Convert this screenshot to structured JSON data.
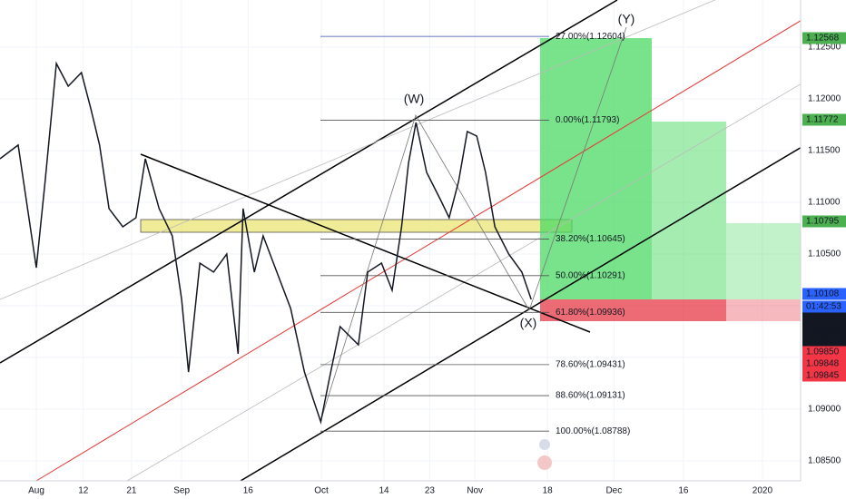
{
  "chart_data": {
    "type": "line",
    "color": "#131722",
    "x": [
      0,
      2.9,
      5.8,
      7.2,
      9.0,
      10.9,
      13.0,
      14.5,
      15.9,
      17.4,
      19.6,
      21.7,
      23.2,
      25.4,
      27.5,
      29.0,
      30.1,
      31.9,
      34.1,
      36.2,
      38.0,
      38.8,
      40.6,
      42.0,
      44.2,
      46.4,
      48.6,
      50.0,
      51.2,
      52.5,
      54.3,
      57.2,
      58.7,
      60.9,
      62.6,
      64.1,
      65.2,
      66.4,
      68.1,
      70.3,
      71.7,
      73.2,
      74.6,
      76.1,
      77.5,
      79.0,
      81.2,
      83.3,
      84.8
    ],
    "values": [
      1.11421,
      1.11553,
      1.10368,
      1.11202,
      1.12342,
      1.12123,
      1.12254,
      1.11904,
      1.11553,
      1.10939,
      1.10763,
      1.10851,
      1.11421,
      1.10939,
      1.10675,
      1.10061,
      1.0936,
      1.10412,
      1.10325,
      1.105,
      1.09535,
      1.10939,
      1.10325,
      1.10675,
      1.10325,
      1.09974,
      1.0936,
      1.09096,
      1.08877,
      1.09272,
      1.09798,
      1.09623,
      1.10325,
      1.10412,
      1.10149,
      1.10763,
      1.11377,
      1.11772,
      1.11289,
      1.11026,
      1.10851,
      1.11202,
      1.11684,
      1.1164,
      1.11289,
      1.10763,
      1.105,
      1.10325,
      1.10061
    ],
    "xlim": [
      0,
      127.8
    ],
    "xticks": [
      {
        "value": 5.8,
        "label": "Aug"
      },
      {
        "value": 13.3,
        "label": "12"
      },
      {
        "value": 21.0,
        "label": "21"
      },
      {
        "value": 29.0,
        "label": "Sep"
      },
      {
        "value": 39.6,
        "label": "16"
      },
      {
        "value": 51.3,
        "label": "Oct"
      },
      {
        "value": 61.3,
        "label": "14"
      },
      {
        "value": 68.6,
        "label": "23"
      },
      {
        "value": 75.8,
        "label": "Nov"
      },
      {
        "value": 87.4,
        "label": "18"
      },
      {
        "value": 98.0,
        "label": "Dec"
      },
      {
        "value": 109.1,
        "label": "16"
      },
      {
        "value": 121.7,
        "label": "2020"
      }
    ],
    "ylim": [
      1.08307,
      1.12956
    ],
    "yticks": [
      {
        "value": 1.085,
        "label": "1.08500"
      },
      {
        "value": 1.09,
        "label": "1.09000"
      },
      {
        "value": 1.095,
        "label": "1.09500"
      },
      {
        "value": 1.1,
        "label": "1.10000"
      },
      {
        "value": 1.105,
        "label": "1.10500"
      },
      {
        "value": 1.11,
        "label": "1.11000"
      },
      {
        "value": 1.115,
        "label": "1.11500"
      },
      {
        "value": 1.12,
        "label": "1.12000"
      },
      {
        "value": 1.125,
        "label": "1.12500"
      }
    ],
    "grid": true,
    "fib_levels": [
      {
        "label": "27.00%(1.12604)",
        "price": 1.12604
      },
      {
        "label": "0.00%(1.11793)",
        "price": 1.11793
      },
      {
        "label": "38.20%(1.10645)",
        "price": 1.10645
      },
      {
        "label": "50.00%(1.10291)",
        "price": 1.10291
      },
      {
        "label": "61.80%(1.09936)",
        "price": 1.09936
      },
      {
        "label": "78.60%(1.09431)",
        "price": 1.09431
      },
      {
        "label": "88.60%(1.09131)",
        "price": 1.09131
      },
      {
        "label": "100.00%(1.08788)",
        "price": 1.08788
      }
    ],
    "wave_labels": [
      "(W)",
      "(X)",
      "(Y)"
    ],
    "price_labels": [
      {
        "label": "1.12568",
        "color": "#4caf50"
      },
      {
        "label": "1.11772",
        "color": "#4caf50"
      },
      {
        "label": "1.10795",
        "color": "#4caf50"
      },
      {
        "label": "1.10108",
        "color": "#2962ff"
      },
      {
        "label": "01:42:53",
        "color": "#2962ff"
      },
      {
        "label": "1.10081",
        "color": "#131722"
      },
      {
        "label": "1.10079",
        "color": "#131722"
      },
      {
        "label": "1.10076",
        "color": "#131722"
      },
      {
        "label": "1.09850",
        "color": "#f23645"
      },
      {
        "label": "1.09848",
        "color": "#f23645"
      },
      {
        "label": "1.09845",
        "color": "#f23645"
      }
    ]
  }
}
